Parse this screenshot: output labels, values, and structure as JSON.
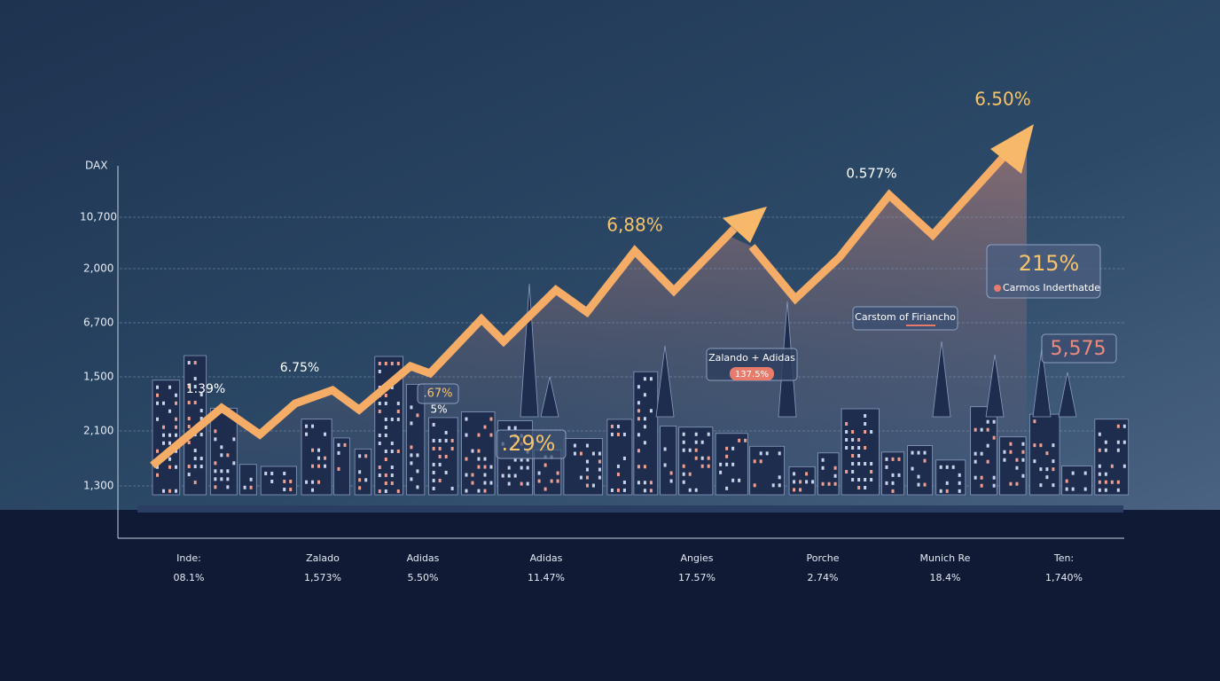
{
  "axis": {
    "title": "DAX",
    "labels": [
      "10,700",
      "2,000",
      "6,700",
      "1,500",
      "2,100",
      "1,300"
    ]
  },
  "annotations": {
    "a1": "1.39%",
    "a2": "6.75%",
    "a3": ".67%",
    "a4": "5%",
    "a5": ".29%",
    "a6": "6,88%",
    "a7": "Zalando + Adidas",
    "a8": "137.5%",
    "a9": "0.577%",
    "a10": "Carstom of Firiancho",
    "a11": "6.50%",
    "a12": "215%",
    "a13": "Carmos Inderthatde",
    "a14": "5,575"
  },
  "table": {
    "names": [
      "Inde:",
      "Zalado",
      "Adidas",
      "Adidas",
      "Angies",
      "Porche",
      "Munich Re",
      "Ten:"
    ],
    "values": [
      "08.1%",
      "1,573%",
      "5.50%",
      "11.47%",
      "17.57%",
      "2.74%",
      "18.4%",
      "1,740%"
    ]
  }
}
